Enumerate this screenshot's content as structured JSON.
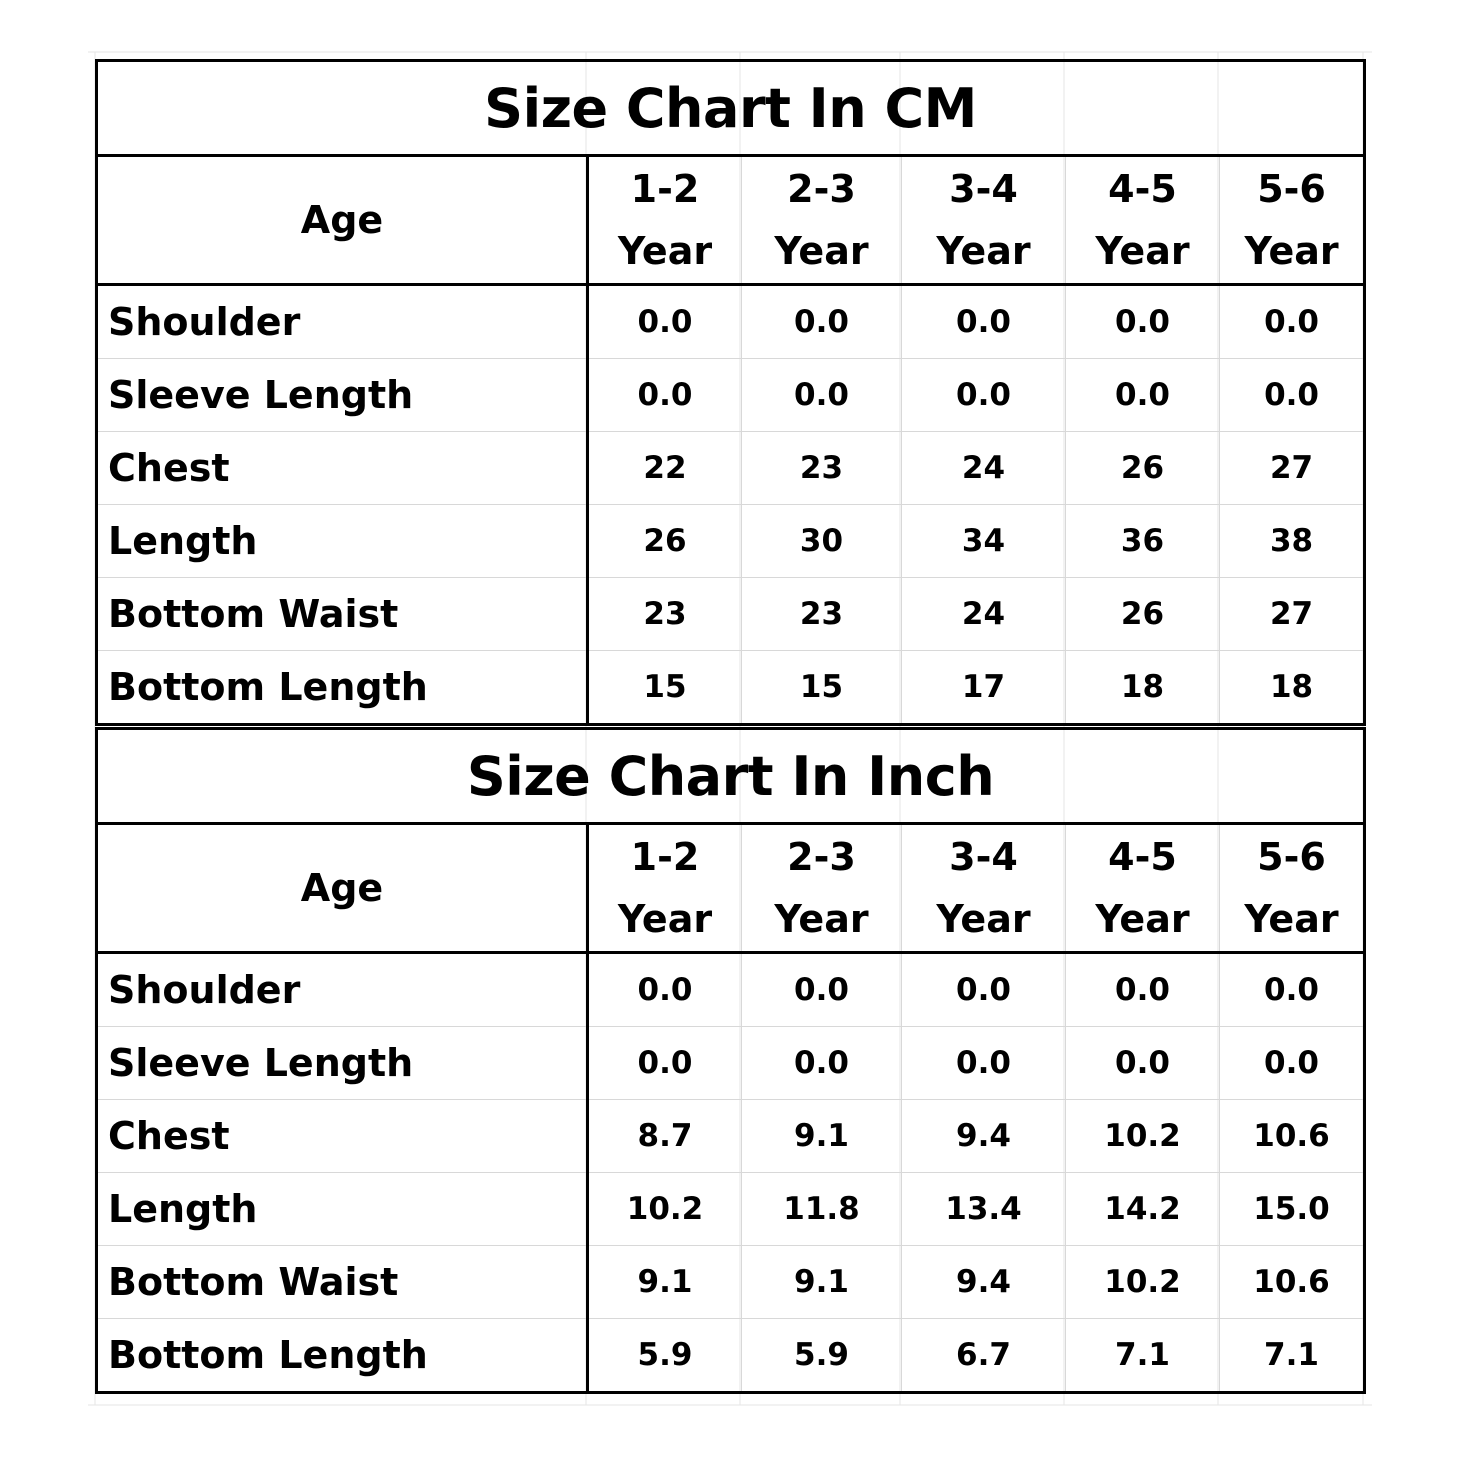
{
  "cm_table": {
    "title": "Size Chart In CM",
    "age_label": "Age",
    "columns": [
      {
        "range": "1-2",
        "unit": "Year"
      },
      {
        "range": "2-3",
        "unit": "Year"
      },
      {
        "range": "3-4",
        "unit": "Year"
      },
      {
        "range": "4-5",
        "unit": "Year"
      },
      {
        "range": "5-6",
        "unit": "Year"
      }
    ],
    "rows": [
      {
        "label": "Shoulder",
        "values": [
          "0.0",
          "0.0",
          "0.0",
          "0.0",
          "0.0"
        ]
      },
      {
        "label": "Sleeve Length",
        "values": [
          "0.0",
          "0.0",
          "0.0",
          "0.0",
          "0.0"
        ]
      },
      {
        "label": "Chest",
        "values": [
          "22",
          "23",
          "24",
          "26",
          "27"
        ]
      },
      {
        "label": "Length",
        "values": [
          "26",
          "30",
          "34",
          "36",
          "38"
        ]
      },
      {
        "label": "Bottom Waist",
        "values": [
          "23",
          "23",
          "24",
          "26",
          "27"
        ]
      },
      {
        "label": "Bottom Length",
        "values": [
          "15",
          "15",
          "17",
          "18",
          "18"
        ]
      }
    ]
  },
  "inch_table": {
    "title": "Size Chart In Inch",
    "age_label": "Age",
    "columns": [
      {
        "range": "1-2",
        "unit": "Year"
      },
      {
        "range": "2-3",
        "unit": "Year"
      },
      {
        "range": "3-4",
        "unit": "Year"
      },
      {
        "range": "4-5",
        "unit": "Year"
      },
      {
        "range": "5-6",
        "unit": "Year"
      }
    ],
    "rows": [
      {
        "label": "Shoulder",
        "values": [
          "0.0",
          "0.0",
          "0.0",
          "0.0",
          "0.0"
        ]
      },
      {
        "label": "Sleeve Length",
        "values": [
          "0.0",
          "0.0",
          "0.0",
          "0.0",
          "0.0"
        ]
      },
      {
        "label": "Chest",
        "values": [
          "8.7",
          "9.1",
          "9.4",
          "10.2",
          "10.6"
        ]
      },
      {
        "label": "Length",
        "values": [
          "10.2",
          "11.8",
          "13.4",
          "14.2",
          "15.0"
        ]
      },
      {
        "label": "Bottom Waist",
        "values": [
          "9.1",
          "9.1",
          "9.4",
          "10.2",
          "10.6"
        ]
      },
      {
        "label": "Bottom Length",
        "values": [
          "5.9",
          "5.9",
          "6.7",
          "7.1",
          "7.1"
        ]
      }
    ]
  }
}
